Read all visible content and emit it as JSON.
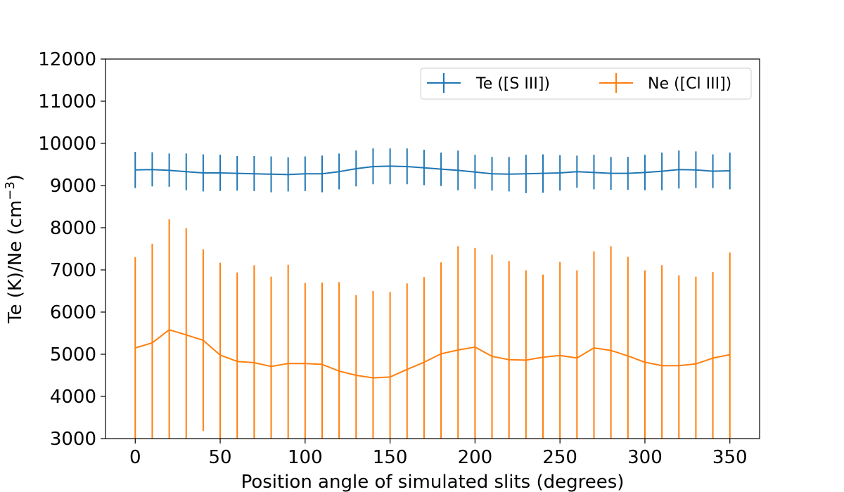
{
  "chart_data": {
    "type": "line",
    "title": "",
    "xlabel": "Position angle of simulated slits (degrees)",
    "ylabel": "Te (K)/Ne (cm",
    "ylabel_sup": "−3",
    "ylabel_close": ")",
    "xlim": [
      -17.5,
      367.5
    ],
    "ylim": [
      3000,
      12000
    ],
    "x_ticks": [
      0,
      50,
      100,
      150,
      200,
      250,
      300,
      350
    ],
    "y_ticks": [
      3000,
      4000,
      5000,
      6000,
      7000,
      8000,
      9000,
      10000,
      11000,
      12000
    ],
    "grid": false,
    "legend_position": "top-right",
    "x": [
      0,
      10,
      20,
      30,
      40,
      50,
      60,
      70,
      80,
      90,
      100,
      110,
      120,
      130,
      140,
      150,
      160,
      170,
      180,
      190,
      200,
      210,
      220,
      230,
      240,
      250,
      260,
      270,
      280,
      290,
      300,
      310,
      320,
      330,
      340,
      350
    ],
    "series": [
      {
        "name": "Te ([S III])",
        "color": "#1f77b4",
        "values": [
          9370,
          9380,
          9360,
          9330,
          9300,
          9300,
          9290,
          9280,
          9270,
          9260,
          9280,
          9280,
          9330,
          9400,
          9450,
          9460,
          9450,
          9420,
          9390,
          9360,
          9320,
          9280,
          9270,
          9280,
          9290,
          9300,
          9330,
          9310,
          9290,
          9290,
          9310,
          9340,
          9380,
          9370,
          9340,
          9350
        ],
        "err_low": [
          8940,
          8980,
          8970,
          8890,
          8860,
          8870,
          8880,
          8870,
          8840,
          8860,
          8870,
          8840,
          8910,
          8980,
          9030,
          9030,
          9030,
          9010,
          8990,
          8890,
          8920,
          8880,
          8860,
          8820,
          8830,
          8880,
          8950,
          8910,
          8900,
          8900,
          8890,
          8890,
          8930,
          8940,
          8940,
          8910
        ],
        "err_high": [
          9800,
          9790,
          9760,
          9760,
          9740,
          9730,
          9700,
          9700,
          9690,
          9670,
          9690,
          9710,
          9760,
          9830,
          9880,
          9880,
          9880,
          9850,
          9780,
          9830,
          9730,
          9680,
          9680,
          9730,
          9740,
          9720,
          9710,
          9730,
          9680,
          9680,
          9730,
          9780,
          9830,
          9810,
          9740,
          9780
        ]
      },
      {
        "name": "Ne ([Cl III])",
        "color": "#ff7f0e",
        "values": [
          5150,
          5270,
          5580,
          5460,
          5330,
          4980,
          4830,
          4800,
          4710,
          4780,
          4780,
          4760,
          4600,
          4500,
          4440,
          4460,
          4640,
          4810,
          5010,
          5100,
          5170,
          4950,
          4870,
          4860,
          4930,
          4970,
          4910,
          5150,
          5090,
          4960,
          4810,
          4730,
          4730,
          4770,
          4910,
          4990
        ],
        "err_low": [
          3000,
          3000,
          3000,
          3000,
          3180,
          3000,
          3000,
          3000,
          3000,
          3000,
          3000,
          3000,
          3000,
          3000,
          3000,
          3000,
          3000,
          3000,
          3000,
          3000,
          3000,
          3000,
          3000,
          3000,
          3000,
          3000,
          3000,
          3000,
          3000,
          3000,
          3000,
          3000,
          3000,
          3000,
          3000,
          3000
        ],
        "err_high": [
          7300,
          7620,
          8200,
          7990,
          7490,
          7170,
          6940,
          7110,
          6840,
          7120,
          6690,
          6700,
          6710,
          6400,
          6500,
          6480,
          6680,
          6830,
          7180,
          7560,
          7520,
          7360,
          7210,
          6990,
          6890,
          7190,
          6990,
          7440,
          7560,
          7310,
          6990,
          7110,
          6870,
          6840,
          6950,
          7410
        ]
      }
    ]
  }
}
